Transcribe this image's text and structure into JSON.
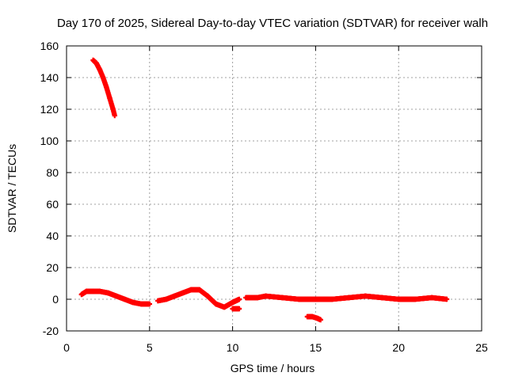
{
  "chart_data": {
    "type": "scatter",
    "title": "Day 170 of 2025, Sidereal Day-to-day VTEC variation (SDTVAR) for receiver walh",
    "xlabel": "GPS time / hours",
    "ylabel": "SDTVAR / TECUs",
    "xlim": [
      0,
      25
    ],
    "ylim": [
      -20,
      160
    ],
    "xticks": [
      0,
      5,
      10,
      15,
      20,
      25
    ],
    "yticks": [
      -20,
      0,
      20,
      40,
      60,
      80,
      100,
      120,
      140,
      160
    ],
    "grid": true,
    "marker": "+",
    "color": "#ff0000",
    "segments": [
      {
        "name": "high-arc",
        "x": [
          1.6,
          1.8,
          2.0,
          2.2,
          2.4,
          2.6,
          2.8,
          2.9
        ],
        "y": [
          151,
          149,
          145,
          140,
          134,
          127,
          120,
          116
        ]
      },
      {
        "name": "main-band-a",
        "x": [
          0.9,
          1.2,
          1.6,
          2.0,
          2.5,
          3.0,
          3.5,
          4.0,
          4.5,
          5.0
        ],
        "y": [
          3,
          5,
          5,
          5,
          4,
          2,
          0,
          -2,
          -3,
          -3
        ]
      },
      {
        "name": "main-band-b",
        "x": [
          5.5,
          6.0,
          6.5,
          7.0,
          7.5,
          8.0,
          8.5,
          9.0,
          9.5,
          10.0,
          10.4
        ],
        "y": [
          -1,
          0,
          2,
          4,
          6,
          6,
          2,
          -3,
          -5,
          -2,
          0
        ]
      },
      {
        "name": "low-drop",
        "x": [
          10.0,
          10.2,
          10.4
        ],
        "y": [
          -6,
          -6,
          -6
        ]
      },
      {
        "name": "main-band-c",
        "x": [
          10.8,
          11.5,
          12.0,
          13.0,
          14.0,
          15.0,
          16.0,
          17.0,
          18.0,
          19.0,
          20.0,
          21.0,
          22.0,
          22.9
        ],
        "y": [
          1,
          1,
          2,
          1,
          0,
          0,
          0,
          1,
          2,
          1,
          0,
          0,
          1,
          0
        ]
      },
      {
        "name": "low-short",
        "x": [
          14.5,
          14.8,
          15.1,
          15.3
        ],
        "y": [
          -11,
          -11,
          -12,
          -13
        ]
      }
    ]
  }
}
